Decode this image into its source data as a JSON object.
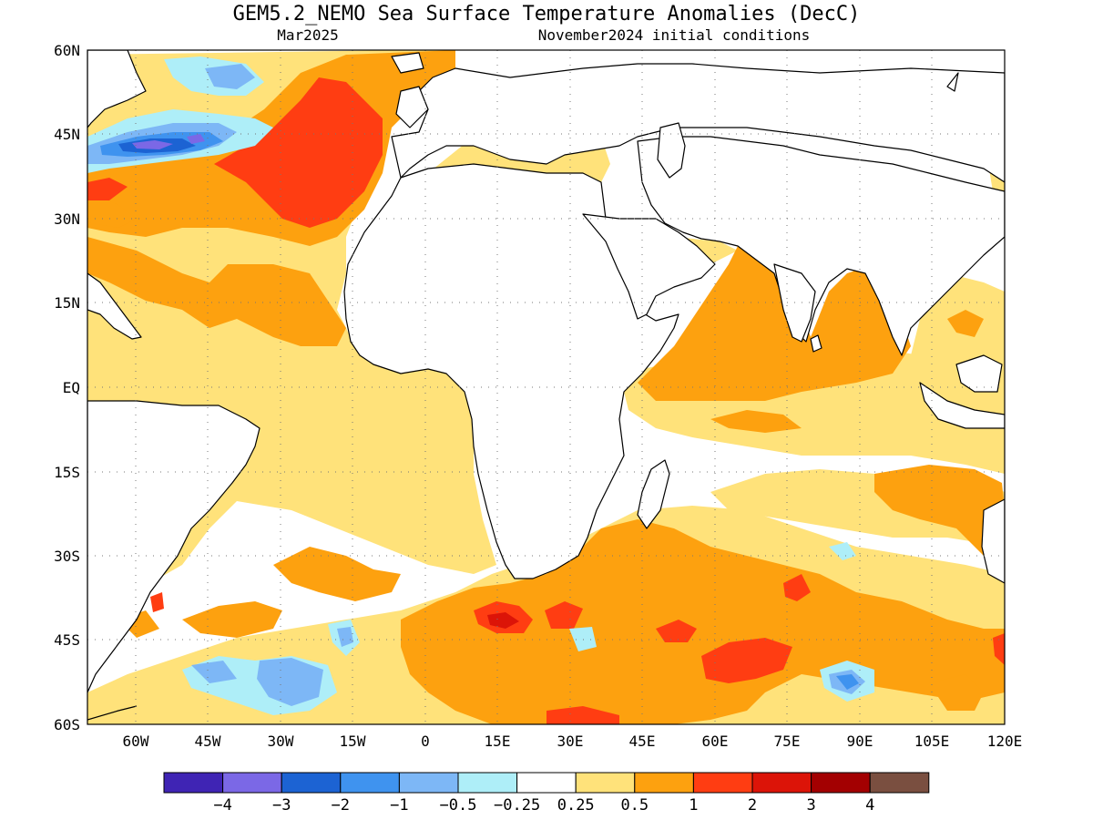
{
  "title": "GEM5.2_NEMO Sea Surface Temperature Anomalies (DecC)",
  "valid_month": "Mar2025",
  "initial_conditions": "November2024 initial conditions",
  "map": {
    "lat_labels": [
      "60N",
      "45N",
      "30N",
      "15N",
      "EQ",
      "15S",
      "30S",
      "45S",
      "60S"
    ],
    "lon_labels": [
      "60W",
      "45W",
      "30W",
      "15W",
      "0",
      "15E",
      "30E",
      "45E",
      "60E",
      "75E",
      "90E",
      "105E",
      "120E"
    ],
    "lat_range": [
      -60,
      60
    ],
    "lon_range": [
      -70,
      120
    ]
  },
  "colorbar": {
    "labels": [
      "−4",
      "−3",
      "−2",
      "−1",
      "−0.5",
      "−0.25",
      "0.25",
      "0.5",
      "1",
      "2",
      "3",
      "4"
    ],
    "colors": [
      "#3f24b4",
      "#7b68e6",
      "#1c63d3",
      "#3f93ef",
      "#7db7f6",
      "#aeeef8",
      "#ffffff",
      "#ffe27a",
      "#fda10f",
      "#ff3d12",
      "#dc1408",
      "#a30001",
      "#7a4f40"
    ]
  }
}
